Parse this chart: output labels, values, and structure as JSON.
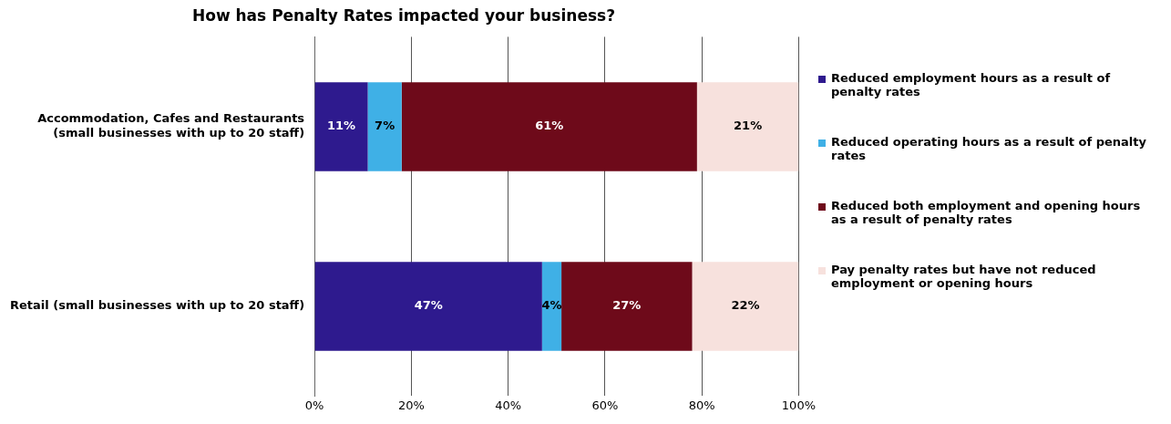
{
  "chart_data": {
    "type": "bar",
    "orientation": "horizontal",
    "stacked": true,
    "title": "How has Penalty Rates impacted your business?",
    "categories": [
      "Accommodation, Cafes and Restaurants (small businesses with up to 20 staff)",
      "Retail (small businesses with up to 20 staff)"
    ],
    "series": [
      {
        "name": "Reduced employment hours as a result of penalty rates",
        "color": "#2e1a8e",
        "values": [
          11,
          47
        ],
        "value_labels": [
          "11%",
          "47%"
        ]
      },
      {
        "name": "Reduced operating hours as a result of penalty rates",
        "color": "#3fb0e6",
        "values": [
          7,
          4
        ],
        "value_labels": [
          "7%",
          "4%"
        ]
      },
      {
        "name": "Reduced both employment and opening hours as a result of penalty rates",
        "color": "#6e0a1a",
        "values": [
          61,
          27
        ],
        "value_labels": [
          "61%",
          "27%"
        ]
      },
      {
        "name": "Pay penalty rates but have not reduced employment or opening hours",
        "color": "#f7e1dd",
        "values": [
          21,
          22
        ],
        "value_labels": [
          "21%",
          "22%"
        ]
      }
    ],
    "xlim": [
      0,
      100
    ],
    "xticks": [
      {
        "value": 0,
        "label": "0%"
      },
      {
        "value": 20,
        "label": "20%"
      },
      {
        "value": 40,
        "label": "40%"
      },
      {
        "value": 60,
        "label": "60%"
      },
      {
        "value": 80,
        "label": "80%"
      },
      {
        "value": 100,
        "label": "100%"
      }
    ],
    "grid": "x",
    "legend": "right"
  }
}
